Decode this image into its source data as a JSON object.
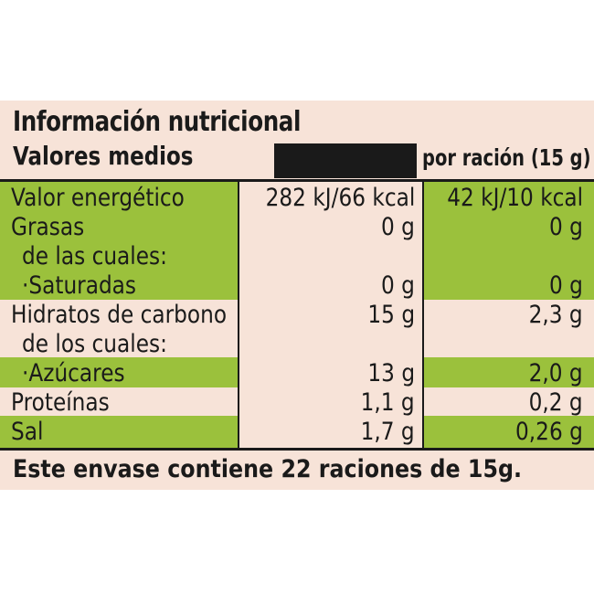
{
  "label": {
    "title": "Información nutricional",
    "subtitle": "Valores medios",
    "col_per_serving": "por ración (15 g)",
    "rows": [
      {
        "name": "Valor energético",
        "per100": "282 kJ/66 kcal",
        "perServing": "42 kJ/10 kcal",
        "highlight": true
      },
      {
        "name": "Grasas",
        "per100": "0 g",
        "perServing": "0 g",
        "highlight": true
      },
      {
        "name": "de las cuales:",
        "per100": "",
        "perServing": "",
        "highlight": true,
        "indent": true
      },
      {
        "name": "·Saturadas",
        "per100": "0 g",
        "perServing": "0 g",
        "highlight": true,
        "indent": true
      },
      {
        "name": "Hidratos de carbono",
        "per100": "15 g",
        "perServing": "2,3 g",
        "highlight": false
      },
      {
        "name": "de los cuales:",
        "per100": "",
        "perServing": "",
        "highlight": false,
        "indent": true
      },
      {
        "name": "·Azúcares",
        "per100": "13 g",
        "perServing": "2,0 g",
        "highlight": true,
        "indent": true
      },
      {
        "name": "Proteínas",
        "per100": "1,1 g",
        "perServing": "0,2 g",
        "highlight": false
      },
      {
        "name": "Sal",
        "per100": "1,7 g",
        "perServing": "0,26 g",
        "highlight": true
      }
    ],
    "footer": "Este envase contiene 22 raciones de 15g.",
    "colors": {
      "background": "#f7e3d8",
      "highlight": "#9bc13c",
      "ink": "#1a1a1a"
    }
  }
}
